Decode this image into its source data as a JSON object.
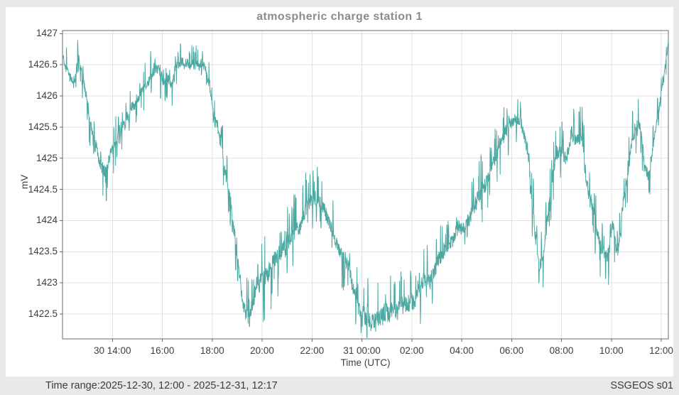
{
  "page": {
    "background": "#e9e9e9",
    "panel_background": "#ffffff"
  },
  "chart_data": {
    "type": "line",
    "title": "atmospheric charge station 1",
    "xlabel": "Time (UTC)",
    "ylabel": "mV",
    "legend": "none",
    "grid": true,
    "y_ticks": [
      1427,
      1426.5,
      1426,
      1425.5,
      1425,
      1424.5,
      1424,
      1423.5,
      1423,
      1422.5
    ],
    "y_axis_range": [
      1422.1,
      1427.05
    ],
    "x_range_hours": [
      0,
      24.2833
    ],
    "x_ticks": [
      {
        "hour": 2,
        "label": "30 14:00"
      },
      {
        "hour": 4,
        "label": "16:00"
      },
      {
        "hour": 6,
        "label": "18:00"
      },
      {
        "hour": 8,
        "label": "20:00"
      },
      {
        "hour": 10,
        "label": "22:00"
      },
      {
        "hour": 12,
        "label": "31 00:00"
      },
      {
        "hour": 14,
        "label": "02:00"
      },
      {
        "hour": 16,
        "label": "04:00"
      },
      {
        "hour": 18,
        "label": "06:00"
      },
      {
        "hour": 20,
        "label": "08:00"
      },
      {
        "hour": 22,
        "label": "10:00"
      },
      {
        "hour": 24,
        "label": "12:00"
      }
    ],
    "series_name": "atmospheric charge station 1 (mV)",
    "trend": [
      [
        0.0,
        1426.6
      ],
      [
        0.2,
        1426.5
      ],
      [
        0.45,
        1426.1
      ],
      [
        0.65,
        1426.55
      ],
      [
        0.9,
        1426.05
      ],
      [
        1.2,
        1425.4
      ],
      [
        1.5,
        1425.0
      ],
      [
        1.7,
        1424.95
      ],
      [
        1.95,
        1425.2
      ],
      [
        2.3,
        1425.45
      ],
      [
        2.7,
        1425.7
      ],
      [
        3.1,
        1425.95
      ],
      [
        3.5,
        1426.25
      ],
      [
        3.75,
        1426.5
      ],
      [
        4.0,
        1426.4
      ],
      [
        4.3,
        1426.15
      ],
      [
        4.6,
        1426.4
      ],
      [
        4.9,
        1426.55
      ],
      [
        5.3,
        1426.6
      ],
      [
        5.6,
        1426.55
      ],
      [
        5.9,
        1426.2
      ],
      [
        6.2,
        1425.6
      ],
      [
        6.5,
        1424.9
      ],
      [
        6.8,
        1424.1
      ],
      [
        7.05,
        1423.3
      ],
      [
        7.25,
        1422.7
      ],
      [
        7.5,
        1422.55
      ],
      [
        7.75,
        1422.95
      ],
      [
        8.1,
        1423.1
      ],
      [
        8.5,
        1423.25
      ],
      [
        8.9,
        1423.5
      ],
      [
        9.3,
        1423.8
      ],
      [
        9.7,
        1424.15
      ],
      [
        10.05,
        1424.3
      ],
      [
        10.35,
        1424.25
      ],
      [
        10.7,
        1424.0
      ],
      [
        11.0,
        1423.7
      ],
      [
        11.3,
        1423.4
      ],
      [
        11.6,
        1423.0
      ],
      [
        11.9,
        1422.6
      ],
      [
        12.2,
        1422.4
      ],
      [
        12.6,
        1422.35
      ],
      [
        13.1,
        1422.35
      ],
      [
        13.6,
        1422.45
      ],
      [
        13.95,
        1422.6
      ],
      [
        14.35,
        1422.85
      ],
      [
        14.8,
        1423.05
      ],
      [
        15.2,
        1423.3
      ],
      [
        15.7,
        1423.65
      ],
      [
        16.2,
        1424.0
      ],
      [
        16.7,
        1424.4
      ],
      [
        17.1,
        1424.75
      ],
      [
        17.5,
        1425.15
      ],
      [
        17.9,
        1425.55
      ],
      [
        18.15,
        1425.65
      ],
      [
        18.4,
        1425.55
      ],
      [
        18.65,
        1425.0
      ],
      [
        18.9,
        1424.0
      ],
      [
        19.1,
        1423.25
      ],
      [
        19.3,
        1423.6
      ],
      [
        19.55,
        1424.4
      ],
      [
        19.8,
        1425.05
      ],
      [
        20.0,
        1425.2
      ],
      [
        20.2,
        1424.95
      ],
      [
        20.4,
        1425.4
      ],
      [
        20.6,
        1425.25
      ],
      [
        20.8,
        1425.4
      ],
      [
        21.0,
        1424.75
      ],
      [
        21.3,
        1424.1
      ],
      [
        21.6,
        1423.5
      ],
      [
        21.85,
        1423.25
      ],
      [
        22.05,
        1423.8
      ],
      [
        22.25,
        1423.3
      ],
      [
        22.5,
        1424.15
      ],
      [
        22.75,
        1424.95
      ],
      [
        22.95,
        1425.6
      ],
      [
        23.15,
        1425.5
      ],
      [
        23.35,
        1424.9
      ],
      [
        23.5,
        1424.85
      ],
      [
        23.75,
        1425.45
      ],
      [
        24.0,
        1426.15
      ],
      [
        24.28,
        1426.85
      ]
    ],
    "noise_amp": [
      [
        0.0,
        0.18
      ],
      [
        0.8,
        0.22
      ],
      [
        1.5,
        0.3
      ],
      [
        2.2,
        0.22
      ],
      [
        3.0,
        0.2
      ],
      [
        3.75,
        0.24
      ],
      [
        4.5,
        0.2
      ],
      [
        5.4,
        0.2
      ],
      [
        6.3,
        0.25
      ],
      [
        7.2,
        0.32
      ],
      [
        7.8,
        0.42
      ],
      [
        8.5,
        0.4
      ],
      [
        9.2,
        0.34
      ],
      [
        10.0,
        0.3
      ],
      [
        10.8,
        0.3
      ],
      [
        11.6,
        0.34
      ],
      [
        12.3,
        0.38
      ],
      [
        13.2,
        0.4
      ],
      [
        14.0,
        0.36
      ],
      [
        15.0,
        0.32
      ],
      [
        16.0,
        0.32
      ],
      [
        17.0,
        0.34
      ],
      [
        18.0,
        0.26
      ],
      [
        18.8,
        0.3
      ],
      [
        19.4,
        0.32
      ],
      [
        20.2,
        0.3
      ],
      [
        21.2,
        0.3
      ],
      [
        22.0,
        0.32
      ],
      [
        22.8,
        0.26
      ],
      [
        23.4,
        0.26
      ],
      [
        24.0,
        0.18
      ],
      [
        24.28,
        0.15
      ]
    ],
    "noise_skew": [
      [
        0.0,
        0.0
      ],
      [
        1.0,
        -0.5
      ],
      [
        1.7,
        -0.7
      ],
      [
        2.5,
        0.0
      ],
      [
        3.7,
        0.5
      ],
      [
        4.5,
        0.2
      ],
      [
        5.3,
        0.4
      ],
      [
        6.3,
        0.0
      ],
      [
        7.3,
        0.2
      ],
      [
        8.0,
        0.1
      ],
      [
        9.0,
        0.2
      ],
      [
        10.0,
        0.35
      ],
      [
        11.0,
        -0.2
      ],
      [
        11.9,
        0.3
      ],
      [
        12.6,
        0.75
      ],
      [
        13.5,
        0.75
      ],
      [
        14.5,
        0.5
      ],
      [
        15.5,
        0.35
      ],
      [
        16.5,
        0.35
      ],
      [
        17.5,
        0.4
      ],
      [
        18.2,
        0.35
      ],
      [
        19.1,
        -0.4
      ],
      [
        19.9,
        0.2
      ],
      [
        20.6,
        0.2
      ],
      [
        21.3,
        -0.3
      ],
      [
        21.9,
        -0.4
      ],
      [
        22.6,
        0.2
      ],
      [
        23.1,
        0.2
      ],
      [
        23.45,
        -0.35
      ],
      [
        24.0,
        0.35
      ],
      [
        24.28,
        0.35
      ]
    ],
    "colors": {
      "line": "#4DA8A2",
      "grid": "#e0e0e0",
      "axis": "#6b6b6b",
      "tick_text": "#3d3d3d",
      "title_text": "#8b8b8b"
    }
  },
  "footer": {
    "time_range_label": "Time range:2025-12-30, 12:00 - 2025-12-31, 12:17",
    "source_label": "SSGEOS s01"
  }
}
